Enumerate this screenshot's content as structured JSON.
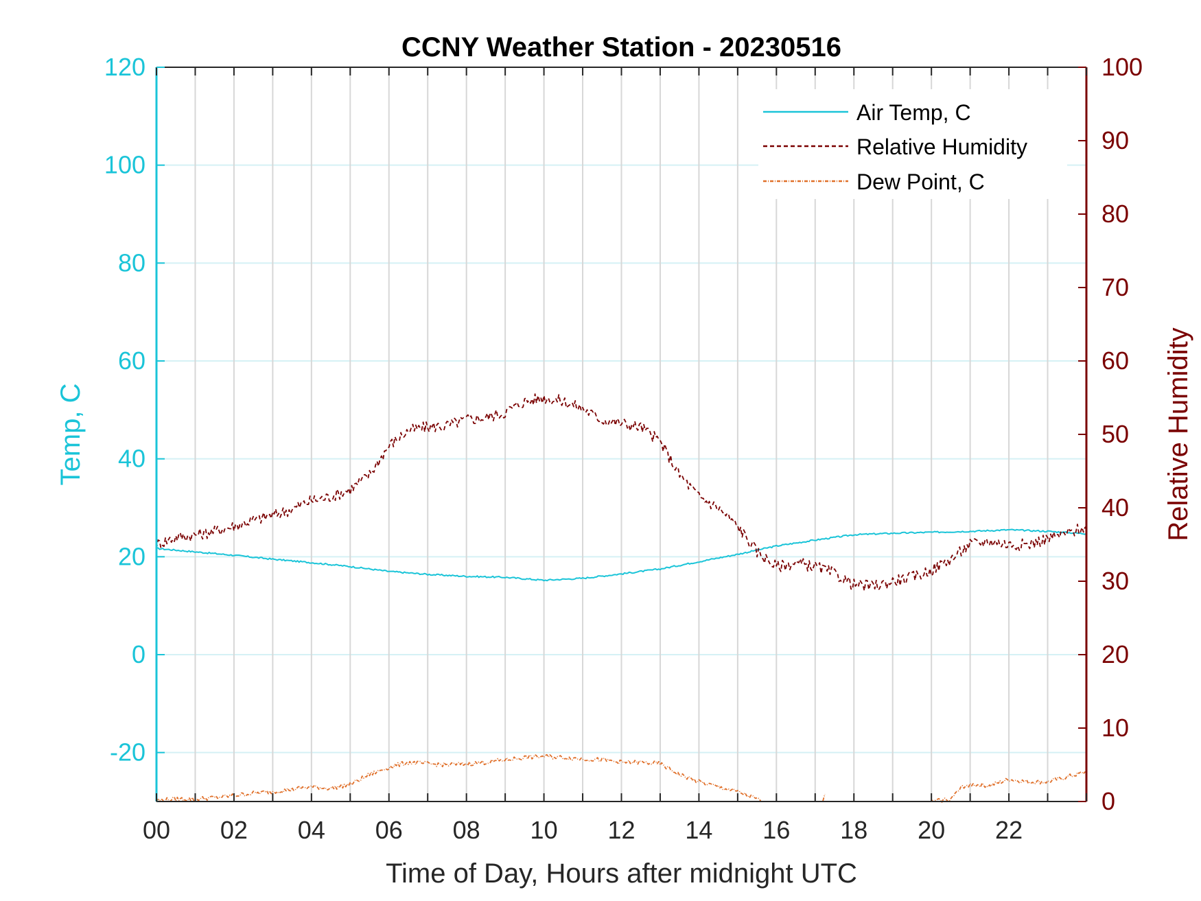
{
  "chart_data": {
    "type": "line",
    "title": "CCNY Weather Station - 20230516",
    "xlabel": "Time of Day, Hours after midnight UTC",
    "ylabel_left": "Temp, C",
    "ylabel_right": "Relative Humidity",
    "xlim": [
      0,
      24
    ],
    "ylim_left": [
      -30,
      120
    ],
    "ylim_right": [
      0,
      100
    ],
    "x_tick_values": [
      0,
      2,
      4,
      6,
      8,
      10,
      12,
      14,
      16,
      18,
      20,
      22
    ],
    "x_tick_labels": [
      "00",
      "02",
      "04",
      "06",
      "08",
      "10",
      "12",
      "14",
      "16",
      "18",
      "20",
      "22"
    ],
    "y_left_ticks": [
      -20,
      0,
      20,
      40,
      60,
      80,
      100,
      120
    ],
    "y_left_tick_labels": [
      "-20",
      "0",
      "20",
      "40",
      "60",
      "80",
      "100",
      "120"
    ],
    "y_right_ticks": [
      0,
      10,
      20,
      30,
      40,
      50,
      60,
      70,
      80,
      90,
      100
    ],
    "y_right_tick_labels": [
      "0",
      "10",
      "20",
      "30",
      "40",
      "50",
      "60",
      "70",
      "80",
      "90",
      "100"
    ],
    "vertical_grid_every_hours": 1,
    "legend_position": "top-right",
    "colors": {
      "air_temp": "#1ac4d8",
      "relative_humidity": "#7a0000",
      "dew_point": "#e0702a",
      "left_axis": "#1ac4d8",
      "right_axis": "#7a0000",
      "grid": "#d7d7d7",
      "hgrid": "#d5f1f5"
    },
    "series": [
      {
        "name": "Air Temp, C",
        "axis": "left",
        "style": "solid",
        "x": [
          0,
          1,
          2,
          3,
          4,
          5,
          6,
          7,
          8,
          9,
          10,
          11,
          12,
          13,
          14,
          15,
          16,
          17,
          18,
          19,
          20,
          21,
          22,
          23,
          24
        ],
        "values": [
          21.7,
          21,
          20.3,
          19.5,
          18.8,
          18,
          17,
          16.4,
          16,
          15.8,
          15.2,
          15.6,
          16.5,
          17.5,
          19,
          20.5,
          22.2,
          23.4,
          24.5,
          24.8,
          25,
          25.2,
          25.5,
          25.2,
          24.7
        ]
      },
      {
        "name": "Relative Humidity",
        "axis": "right",
        "style": "dashed",
        "x": [
          0,
          0.5,
          1,
          1.5,
          2,
          2.5,
          3,
          3.5,
          4,
          4.5,
          5,
          5.5,
          6,
          6.5,
          7,
          7.5,
          8,
          8.5,
          9,
          9.5,
          10,
          10.5,
          11,
          11.5,
          12,
          12.5,
          13,
          13.5,
          14,
          14.5,
          15,
          15.5,
          16,
          16.5,
          17,
          17.5,
          18,
          18.5,
          19,
          19.5,
          20,
          20.5,
          21,
          21.5,
          22,
          22.5,
          23,
          23.5,
          24
        ],
        "values": [
          35,
          36,
          36.3,
          36.8,
          37.5,
          38.3,
          39,
          39.8,
          41,
          41.5,
          42.5,
          44.5,
          48.5,
          50.5,
          51,
          51.2,
          52,
          52.3,
          53,
          54.5,
          55,
          54.5,
          53.5,
          52,
          51.5,
          51,
          49,
          44.5,
          41.5,
          40,
          37.5,
          34,
          32,
          32.5,
          32,
          31,
          29.5,
          29.3,
          30,
          30.5,
          31.5,
          33,
          35,
          35.5,
          35,
          35,
          35.8,
          36.5,
          37.5
        ]
      },
      {
        "name": "Dew Point, C",
        "axis": "left",
        "style": "dashdot",
        "x": [
          0,
          0.5,
          1,
          1.5,
          2,
          2.5,
          3,
          3.5,
          4,
          4.5,
          5,
          5.5,
          6,
          6.5,
          7,
          7.5,
          8,
          8.5,
          9,
          9.5,
          10,
          10.5,
          11,
          11.5,
          12,
          12.5,
          13,
          13.5,
          14,
          14.5,
          15,
          15.5,
          15.6
        ],
        "values": [
          -29.8,
          -29.5,
          -29.5,
          -29.2,
          -28.8,
          -28.3,
          -28,
          -27.5,
          -27,
          -27.3,
          -26.5,
          -24.5,
          -23,
          -22,
          -22.3,
          -22.5,
          -22.3,
          -22,
          -21.5,
          -21,
          -20.8,
          -21,
          -21.3,
          -21.5,
          -22,
          -22,
          -22.3,
          -24.5,
          -26,
          -27,
          -28,
          -29.5,
          -30
        ],
        "x2": [
          17.2,
          17.25
        ],
        "values2": [
          -30,
          -28.5
        ],
        "x3": [
          20,
          20.5,
          20.8,
          21,
          21.5,
          22,
          22.5,
          23,
          23.5,
          24
        ],
        "values3": [
          -30,
          -29.5,
          -27,
          -26.5,
          -26.8,
          -25.5,
          -26,
          -26,
          -25,
          -24
        ]
      }
    ]
  }
}
